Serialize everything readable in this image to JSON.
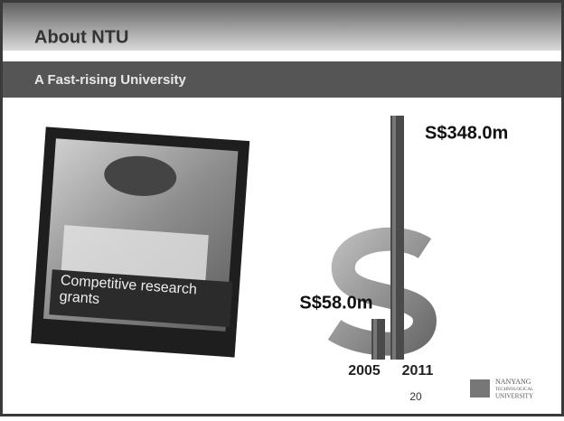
{
  "header": {
    "title": "About NTU",
    "subtitle": "A Fast-rising University"
  },
  "photo": {
    "caption": "Competitive research grants"
  },
  "chart_data": {
    "type": "bar",
    "categories": [
      "2005",
      "2011"
    ],
    "values": [
      58,
      348
    ],
    "value_labels": [
      "S$58.0m",
      "S$348.0m"
    ],
    "color": "#4a4a4a"
  },
  "footer": {
    "page_number": "20",
    "logo": [
      "NANYANG",
      "TECHNOLOGICAL",
      "UNIVERSITY"
    ]
  }
}
